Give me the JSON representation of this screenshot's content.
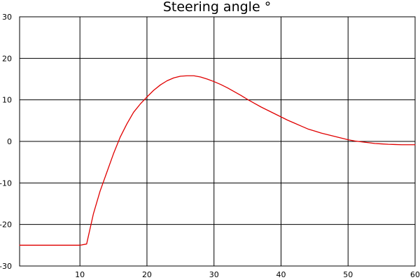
{
  "chart_data": {
    "type": "line",
    "title": "Steering angle °",
    "xlabel": "",
    "ylabel": "",
    "xlim": [
      1,
      60
    ],
    "ylim": [
      -30,
      30
    ],
    "xticks": [
      10,
      20,
      30,
      40,
      50,
      60
    ],
    "yticks": [
      -30,
      -20,
      -10,
      0,
      10,
      20,
      30
    ],
    "grid": true,
    "legend": "none",
    "series": [
      {
        "color": "#e00000",
        "x": [
          1,
          2,
          3,
          4,
          5,
          6,
          7,
          8,
          9,
          10,
          11,
          12,
          13,
          14,
          15,
          16,
          17,
          18,
          19,
          20,
          21,
          22,
          23,
          24,
          25,
          26,
          27,
          28,
          29,
          30,
          31,
          32,
          33,
          34,
          35,
          36,
          37,
          38,
          39,
          40,
          41,
          42,
          43,
          44,
          45,
          46,
          47,
          48,
          49,
          50,
          51,
          52,
          53,
          54,
          55,
          56,
          57,
          58,
          59,
          60
        ],
        "y": [
          -25,
          -25,
          -25,
          -25,
          -25,
          -25,
          -25,
          -25,
          -25,
          -25,
          -24.7,
          -17.5,
          -12.0,
          -7.5,
          -3.0,
          1.0,
          4.2,
          7.0,
          9.0,
          10.7,
          12.3,
          13.6,
          14.6,
          15.3,
          15.7,
          15.8,
          15.8,
          15.5,
          15.0,
          14.4,
          13.7,
          12.9,
          12.0,
          11.1,
          10.1,
          9.2,
          8.3,
          7.5,
          6.7,
          5.9,
          5.1,
          4.4,
          3.7,
          3.0,
          2.5,
          2.0,
          1.6,
          1.2,
          0.8,
          0.4,
          0.1,
          -0.1,
          -0.3,
          -0.5,
          -0.6,
          -0.7,
          -0.75,
          -0.8,
          -0.8,
          -0.8
        ]
      }
    ]
  }
}
